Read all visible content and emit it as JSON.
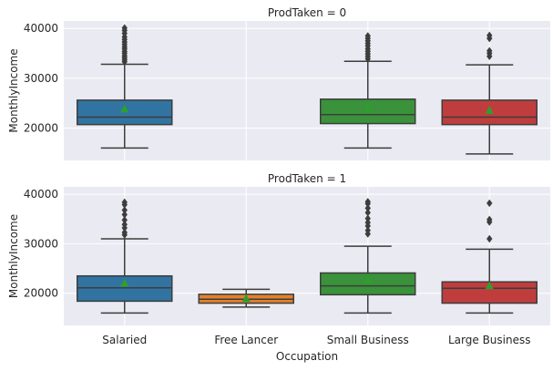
{
  "chart_data": [
    {
      "type": "box",
      "title": "ProdTaken = 0",
      "xlabel": "",
      "ylabel": "MonthlyIncome",
      "categories": [
        "Salaried",
        "Free Lancer",
        "Small Business",
        "Large Business"
      ],
      "show_xticklabels": false,
      "ylim": [
        13500,
        41500
      ],
      "yticks": [
        20000,
        30000,
        40000
      ],
      "ytick_labels": [
        "20000",
        "30000",
        "40000"
      ],
      "grid": true,
      "boxes": [
        {
          "category": "Salaried",
          "color": "#3274a1",
          "q1": 20700,
          "median": 22200,
          "q3": 25600,
          "whisker_low": 16000,
          "whisker_high": 32800,
          "mean": 23800,
          "outliers": [
            33300,
            33700,
            34100,
            34500,
            35000,
            35400,
            35900,
            36300,
            36800,
            37300,
            37800,
            38300,
            39000,
            39600,
            40100
          ]
        },
        {
          "category": "Free Lancer",
          "empty": true
        },
        {
          "category": "Small Business",
          "color": "#3a923a",
          "q1": 20900,
          "median": 22700,
          "q3": 25800,
          "whisker_low": 16000,
          "whisker_high": 33400,
          "mean": 24000,
          "outliers": [
            33900,
            34400,
            34900,
            35400,
            35900,
            36500,
            37000,
            37500,
            38000,
            38500
          ]
        },
        {
          "category": "Large Business",
          "color": "#c03d3e",
          "q1": 20700,
          "median": 22200,
          "q3": 25600,
          "whisker_low": 14800,
          "whisker_high": 32700,
          "mean": 23500,
          "outliers": [
            34400,
            35000,
            35500,
            38000,
            38600
          ]
        }
      ]
    },
    {
      "type": "box",
      "title": "ProdTaken = 1",
      "xlabel": "Occupation",
      "ylabel": "MonthlyIncome",
      "categories": [
        "Salaried",
        "Free Lancer",
        "Small Business",
        "Large Business"
      ],
      "show_xticklabels": true,
      "ylim": [
        13500,
        41500
      ],
      "yticks": [
        20000,
        30000,
        40000
      ],
      "ytick_labels": [
        "20000",
        "30000",
        "40000"
      ],
      "grid": true,
      "boxes": [
        {
          "category": "Salaried",
          "color": "#3274a1",
          "q1": 18400,
          "median": 21100,
          "q3": 23500,
          "whisker_low": 16000,
          "whisker_high": 31000,
          "mean": 22000,
          "outliers": [
            31800,
            32300,
            33200,
            33900,
            34800,
            35900,
            36800,
            37900,
            38400
          ]
        },
        {
          "category": "Free Lancer",
          "color": "#e1812c",
          "q1": 18000,
          "median": 18800,
          "q3": 19800,
          "whisker_low": 17200,
          "whisker_high": 20800,
          "mean": 18900,
          "outliers": []
        },
        {
          "category": "Small Business",
          "color": "#3a923a",
          "q1": 19700,
          "median": 21500,
          "q3": 24100,
          "whisker_low": 16000,
          "whisker_high": 29500,
          "mean": 22500,
          "outliers": [
            32000,
            32700,
            33600,
            34300,
            35100,
            36300,
            37200,
            38100,
            38500
          ]
        },
        {
          "category": "Large Business",
          "color": "#c03d3e",
          "q1": 18000,
          "median": 21000,
          "q3": 22300,
          "whisker_low": 16000,
          "whisker_high": 28900,
          "mean": 21500,
          "outliers": [
            31000,
            34400,
            34900,
            38200
          ]
        }
      ]
    }
  ]
}
